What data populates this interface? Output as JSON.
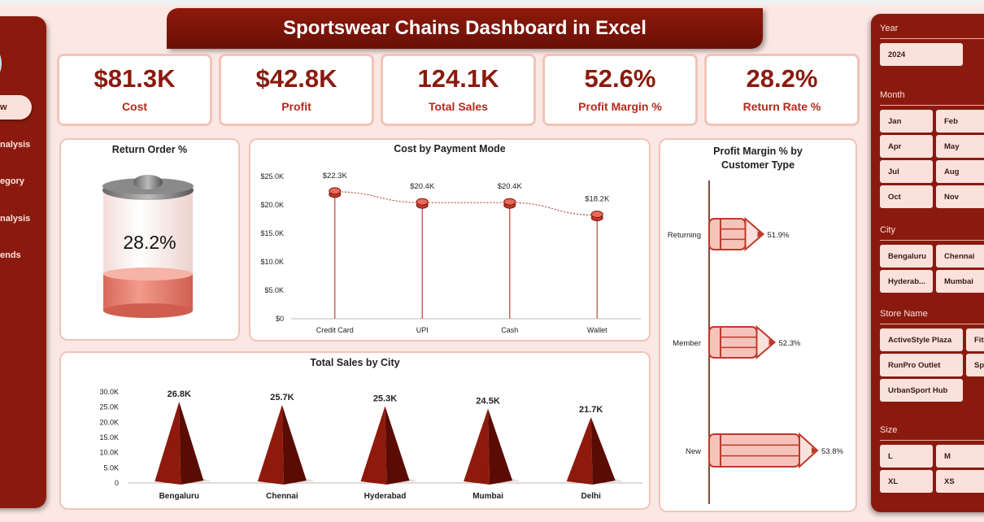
{
  "title": "Sportswear Chains Dashboard in Excel",
  "nav": [
    {
      "label": "w"
    },
    {
      "label": "nalysis"
    },
    {
      "label": "egory"
    },
    {
      "label": "nalysis"
    },
    {
      "label": "ends"
    }
  ],
  "kpis": [
    {
      "value": "$81.3K",
      "label": "Cost"
    },
    {
      "value": "$42.8K",
      "label": "Profit"
    },
    {
      "value": "124.1K",
      "label": "Total Sales"
    },
    {
      "value": "52.6%",
      "label": "Profit Margin %"
    },
    {
      "value": "28.2%",
      "label": "Return Rate %"
    }
  ],
  "return_order": {
    "title": "Return Order %",
    "value": "28.2%",
    "fraction": 0.282
  },
  "filters": {
    "year": {
      "label": "Year",
      "items": [
        "2024"
      ]
    },
    "month": {
      "label": "Month",
      "items": [
        "Jan",
        "Feb",
        "Apr",
        "May",
        "Jul",
        "Aug",
        "Oct",
        "Nov"
      ]
    },
    "city": {
      "label": "City",
      "items": [
        "Bengaluru",
        "Chennai",
        "Hyderab...",
        "Mumbai"
      ]
    },
    "store": {
      "label": "Store Name",
      "items": [
        "ActiveStyle Plaza",
        "Fit",
        "RunPro Outlet",
        "Sp",
        "UrbanSport Hub"
      ]
    },
    "size": {
      "label": "Size",
      "items": [
        "L",
        "M",
        "XL",
        "XS"
      ]
    }
  },
  "chart_data": [
    {
      "type": "line",
      "title": "Cost by Payment Mode",
      "categories": [
        "Credit Card",
        "UPI",
        "Cash",
        "Wallet"
      ],
      "values": [
        22300,
        20400,
        20400,
        18200
      ],
      "data_labels": [
        "$22.3K",
        "$20.4K",
        "$20.4K",
        "$18.2K"
      ],
      "yticks": [
        "$0",
        "$5.0K",
        "$10.0K",
        "$15.0K",
        "$20.0K",
        "$25.0K"
      ],
      "ylim": [
        0,
        25000
      ]
    },
    {
      "type": "bar",
      "title": "Total Sales by City",
      "categories": [
        "Bengaluru",
        "Chennai",
        "Hyderabad",
        "Mumbai",
        "Delhi"
      ],
      "values": [
        26800,
        25700,
        25300,
        24500,
        21700
      ],
      "data_labels": [
        "26.8K",
        "25.7K",
        "25.3K",
        "24.5K",
        "21.7K"
      ],
      "yticks": [
        "0",
        "5.0K",
        "10.0K",
        "15.0K",
        "20.0K",
        "25.0K",
        "30.0K"
      ],
      "ylim": [
        0,
        30000
      ]
    },
    {
      "type": "bar",
      "orientation": "horizontal",
      "title": "Profit Margin % by Customer Type",
      "categories": [
        "Returning",
        "Member",
        "New"
      ],
      "values": [
        51.9,
        52.3,
        53.8
      ],
      "data_labels": [
        "51.9%",
        "52.3%",
        "53.8%"
      ],
      "xlim": [
        50,
        55
      ]
    }
  ],
  "colors": {
    "primary": "#8b1a0e",
    "accent": "#c0392b",
    "chip": "#fbe1dc"
  }
}
